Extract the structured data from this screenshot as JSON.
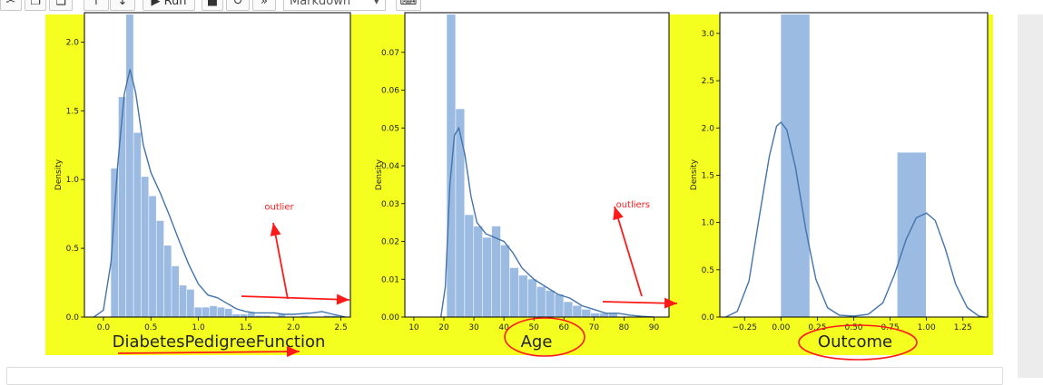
{
  "toolbar": {
    "run_label": "Run",
    "cell_type": "Markdown"
  },
  "colors": {
    "figure_background": "#f5ff1f",
    "axes_background": "#ffffff",
    "bar": "#9bbbe2",
    "kde_line": "#4374ab",
    "annotation": "#ff1a1a"
  },
  "chart_data": [
    {
      "type": "bar",
      "overlay": "kde line",
      "xlabel": "DiabetesPedigreeFunction",
      "ylabel": "Density",
      "xlim": [
        -0.2,
        2.6
      ],
      "ylim": [
        0,
        2.2
      ],
      "xticks": [
        0.0,
        0.5,
        1.0,
        1.5,
        2.0,
        2.5
      ],
      "xtick_labels": [
        "0.0",
        "0.5",
        "1.0",
        "1.5",
        "2.0",
        "2.5"
      ],
      "yticks": [
        0.0,
        0.5,
        1.0,
        1.5,
        2.0
      ],
      "ytick_labels": [
        "0.0",
        "0.5",
        "1.0",
        "1.5",
        "2.0"
      ],
      "bin_edges": [
        0.08,
        0.16,
        0.24,
        0.32,
        0.4,
        0.48,
        0.56,
        0.64,
        0.72,
        0.8,
        0.88,
        0.96,
        1.04,
        1.12,
        1.2,
        1.28,
        1.36,
        1.44,
        1.52,
        1.6,
        1.68,
        1.76,
        1.84,
        1.92,
        2.0,
        2.08,
        2.16,
        2.24,
        2.32,
        2.4,
        2.48
      ],
      "bin_values": [
        1.08,
        1.6,
        2.2,
        1.34,
        1.02,
        0.88,
        0.7,
        0.52,
        0.37,
        0.23,
        0.2,
        0.07,
        0.07,
        0.08,
        0.07,
        0.06,
        0.02,
        0.02,
        0.03,
        0.01,
        0.01,
        0.0,
        0.02,
        0.0,
        0.0,
        0.01,
        0.0,
        0.0,
        0.01,
        0.01
      ],
      "kde": [
        [
          -0.1,
          0.0
        ],
        [
          0.0,
          0.05
        ],
        [
          0.08,
          0.4
        ],
        [
          0.15,
          1.1
        ],
        [
          0.22,
          1.62
        ],
        [
          0.28,
          1.8
        ],
        [
          0.34,
          1.63
        ],
        [
          0.42,
          1.25
        ],
        [
          0.5,
          1.05
        ],
        [
          0.6,
          0.9
        ],
        [
          0.7,
          0.73
        ],
        [
          0.8,
          0.55
        ],
        [
          0.9,
          0.38
        ],
        [
          1.0,
          0.24
        ],
        [
          1.1,
          0.16
        ],
        [
          1.2,
          0.14
        ],
        [
          1.3,
          0.1
        ],
        [
          1.4,
          0.06
        ],
        [
          1.5,
          0.04
        ],
        [
          1.6,
          0.03
        ],
        [
          1.7,
          0.03
        ],
        [
          1.8,
          0.03
        ],
        [
          1.9,
          0.02
        ],
        [
          2.0,
          0.02
        ],
        [
          2.2,
          0.03
        ],
        [
          2.3,
          0.04
        ],
        [
          2.42,
          0.02
        ],
        [
          2.55,
          0.0
        ]
      ],
      "annotations": [
        {
          "text": "outlier",
          "x": 1.85,
          "y": 0.78
        }
      ],
      "circled_label": false
    },
    {
      "type": "bar",
      "overlay": "kde line",
      "xlabel": "Age",
      "ylabel": "Density",
      "xlim": [
        7,
        95
      ],
      "ylim": [
        0,
        0.08
      ],
      "xticks": [
        10,
        20,
        30,
        40,
        50,
        60,
        70,
        80,
        90
      ],
      "xtick_labels": [
        "10",
        "20",
        "30",
        "40",
        "50",
        "60",
        "70",
        "80",
        "90"
      ],
      "yticks": [
        0.0,
        0.01,
        0.02,
        0.03,
        0.04,
        0.05,
        0.06,
        0.07
      ],
      "ytick_labels": [
        "0.00",
        "0.01",
        "0.02",
        "0.03",
        "0.04",
        "0.05",
        "0.06",
        "0.07"
      ],
      "bin_edges": [
        21,
        24,
        27,
        30,
        33,
        36,
        39,
        42,
        45,
        48,
        51,
        54,
        57,
        60,
        63,
        66,
        69,
        72,
        75,
        78,
        81
      ],
      "bin_values": [
        0.08,
        0.055,
        0.027,
        0.024,
        0.021,
        0.024,
        0.019,
        0.013,
        0.011,
        0.01,
        0.008,
        0.007,
        0.006,
        0.004,
        0.003,
        0.002,
        0.001,
        0.001,
        0.001,
        0.0
      ],
      "kde": [
        [
          19,
          0.0
        ],
        [
          20.5,
          0.008
        ],
        [
          22,
          0.035
        ],
        [
          23.5,
          0.048
        ],
        [
          25,
          0.05
        ],
        [
          27,
          0.043
        ],
        [
          29,
          0.032
        ],
        [
          31,
          0.025
        ],
        [
          34,
          0.022
        ],
        [
          37,
          0.021
        ],
        [
          40,
          0.02
        ],
        [
          43,
          0.017
        ],
        [
          46,
          0.013
        ],
        [
          50,
          0.01
        ],
        [
          54,
          0.008
        ],
        [
          58,
          0.006
        ],
        [
          62,
          0.005
        ],
        [
          66,
          0.003
        ],
        [
          70,
          0.002
        ],
        [
          74,
          0.001
        ],
        [
          78,
          0.001
        ],
        [
          82,
          0.0005
        ],
        [
          86,
          0.0002
        ],
        [
          90,
          0.0
        ]
      ],
      "annotations": [
        {
          "text": "outliers",
          "x": 83,
          "y": 0.029
        }
      ],
      "circled_label": true
    },
    {
      "type": "bar",
      "overlay": "kde line",
      "xlabel": "Outcome",
      "ylabel": "Density",
      "xlim": [
        -0.42,
        1.42
      ],
      "ylim": [
        0,
        3.2
      ],
      "xticks": [
        -0.25,
        0.0,
        0.25,
        0.5,
        0.75,
        1.0,
        1.25
      ],
      "xtick_labels": [
        "−0.25",
        "0.00",
        "0.25",
        "0.50",
        "0.75",
        "1.00",
        "1.25"
      ],
      "yticks": [
        0.0,
        0.5,
        1.0,
        1.5,
        2.0,
        2.5,
        3.0
      ],
      "ytick_labels": [
        "0.0",
        "0.5",
        "1.0",
        "1.5",
        "2.0",
        "2.5",
        "3.0"
      ],
      "bin_edges": [
        0.0,
        0.2,
        0.8,
        1.0
      ],
      "bin_values": [
        3.3,
        0.0,
        1.74
      ],
      "kde": [
        [
          -0.38,
          0.0
        ],
        [
          -0.3,
          0.06
        ],
        [
          -0.22,
          0.38
        ],
        [
          -0.15,
          1.05
        ],
        [
          -0.08,
          1.7
        ],
        [
          -0.03,
          2.02
        ],
        [
          0.0,
          2.06
        ],
        [
          0.04,
          1.98
        ],
        [
          0.1,
          1.58
        ],
        [
          0.17,
          0.93
        ],
        [
          0.24,
          0.4
        ],
        [
          0.32,
          0.1
        ],
        [
          0.4,
          0.02
        ],
        [
          0.5,
          0.01
        ],
        [
          0.6,
          0.03
        ],
        [
          0.7,
          0.15
        ],
        [
          0.78,
          0.45
        ],
        [
          0.86,
          0.82
        ],
        [
          0.93,
          1.05
        ],
        [
          1.0,
          1.1
        ],
        [
          1.06,
          1.02
        ],
        [
          1.13,
          0.72
        ],
        [
          1.2,
          0.35
        ],
        [
          1.28,
          0.1
        ],
        [
          1.36,
          0.01
        ],
        [
          1.4,
          0.0
        ]
      ],
      "annotations": [],
      "circled_label": true
    }
  ]
}
